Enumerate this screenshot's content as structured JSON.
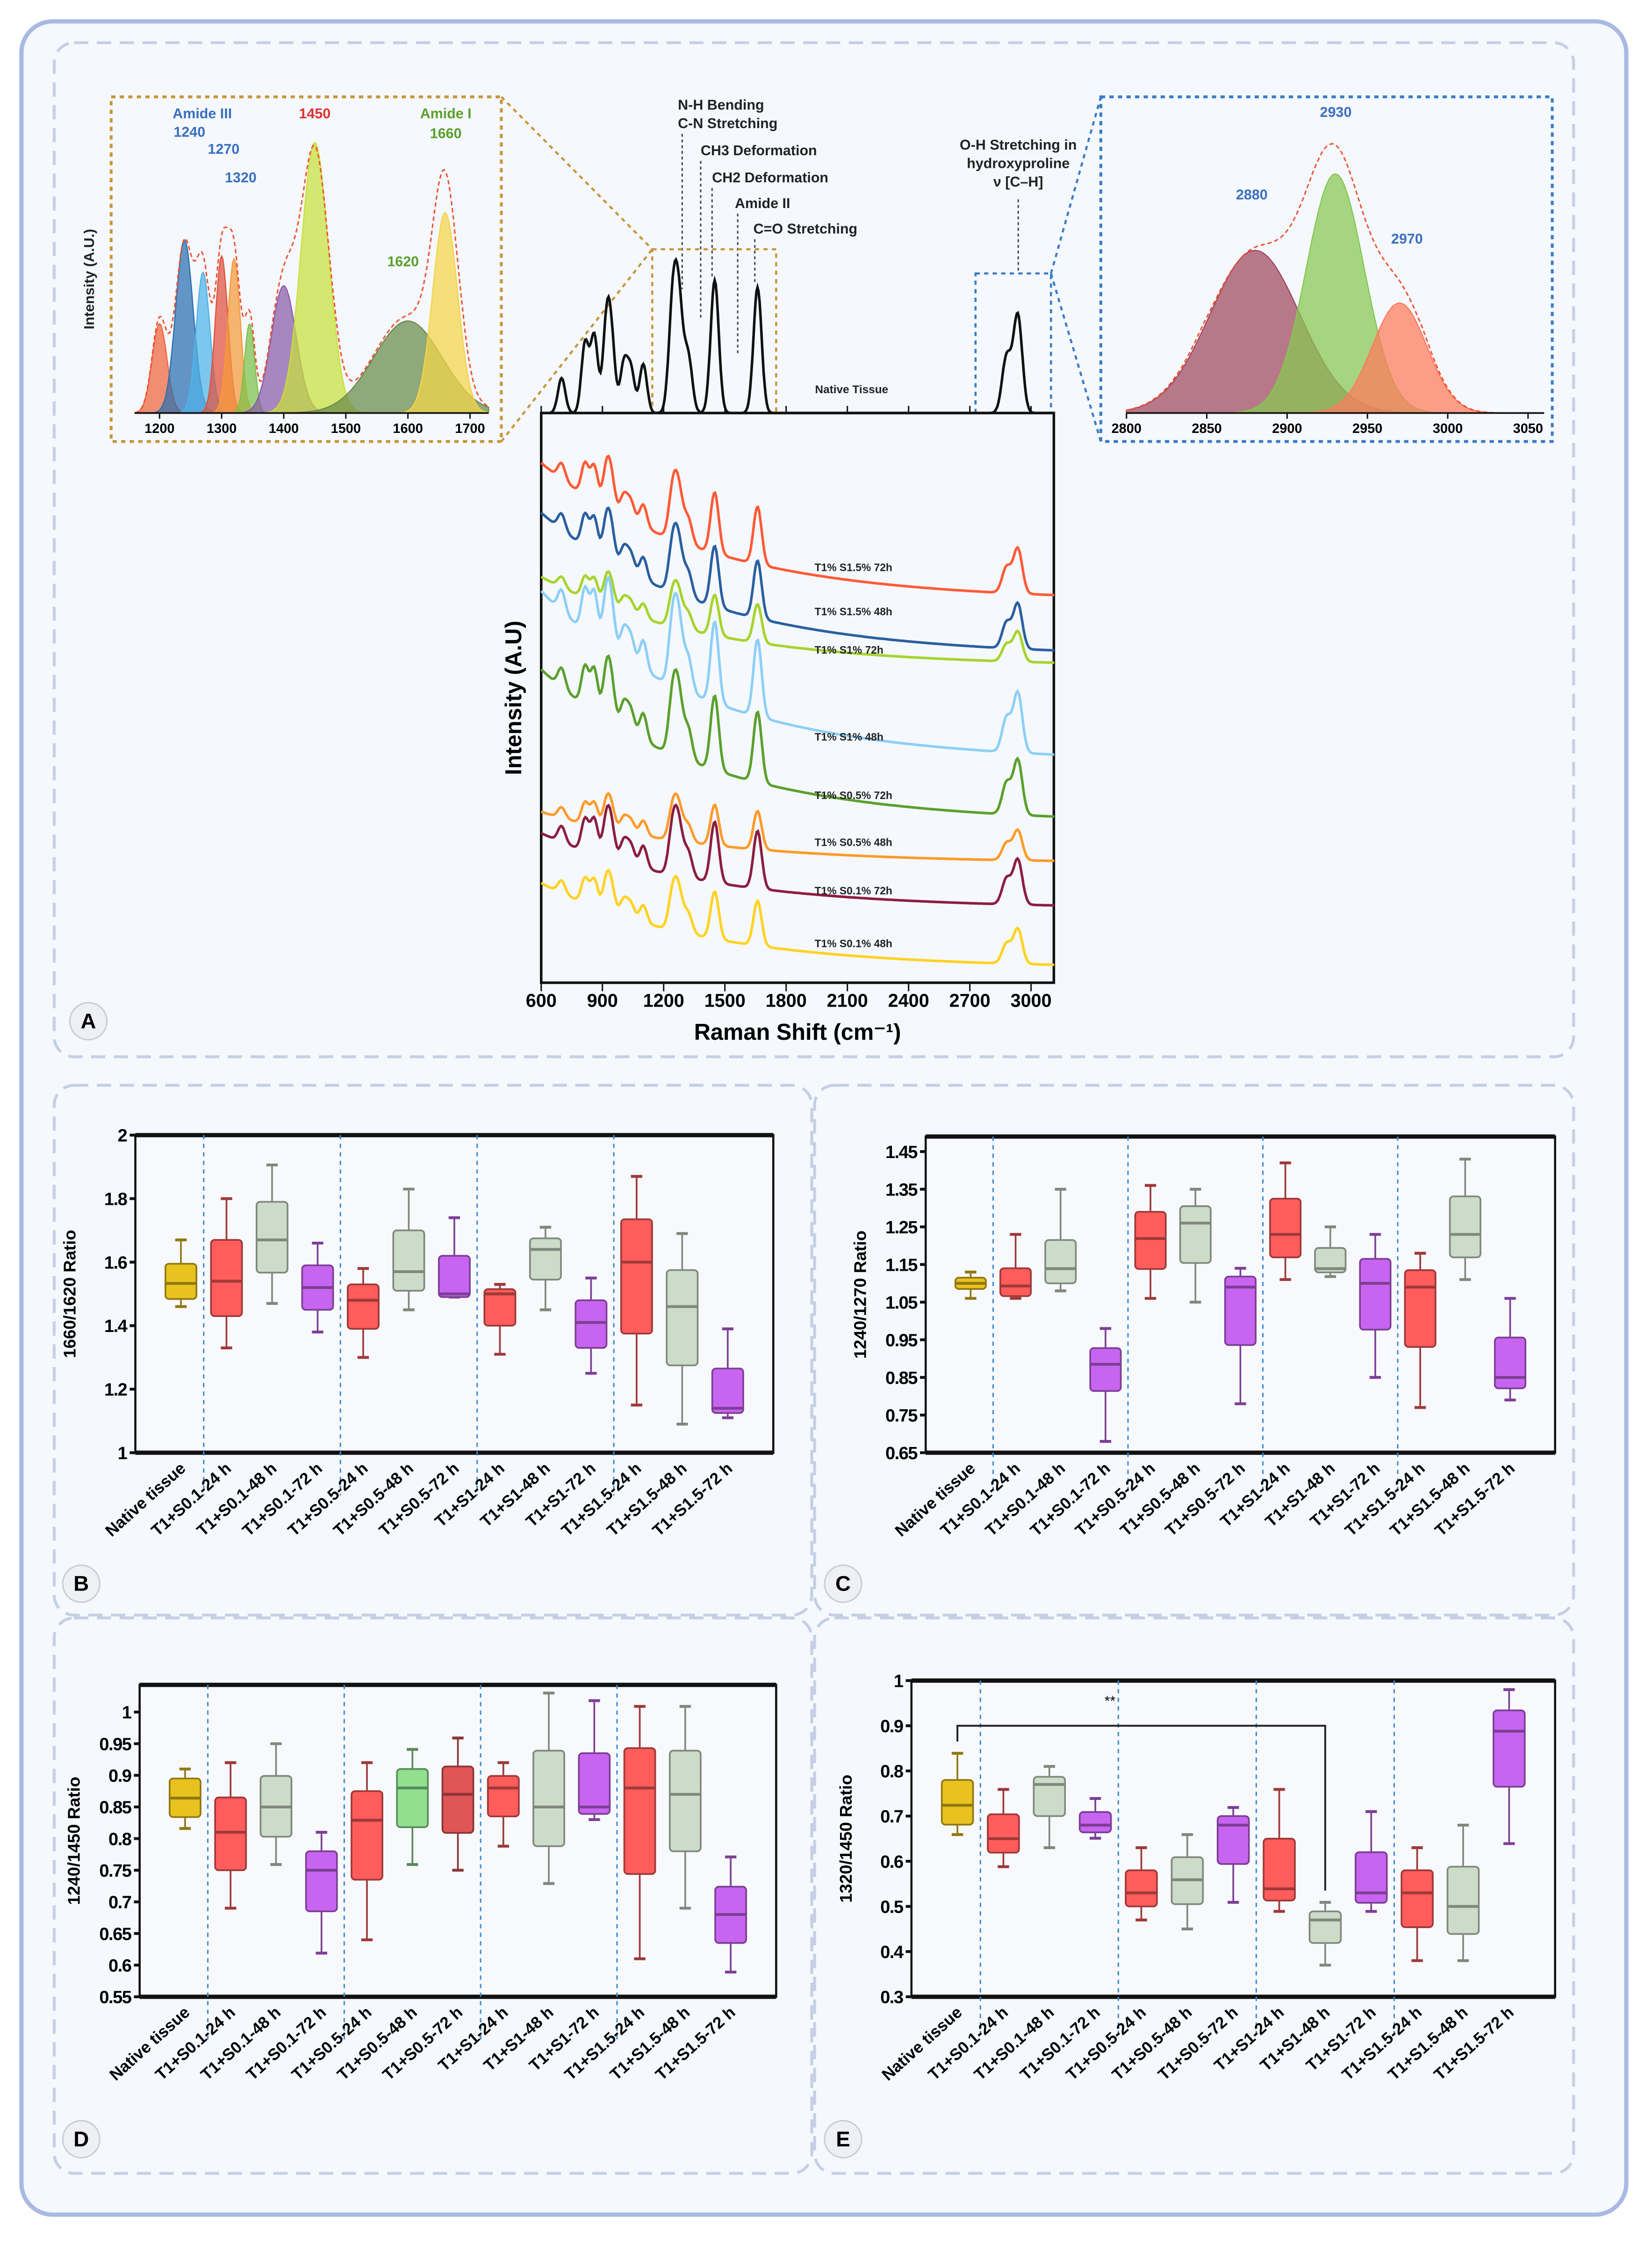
{
  "panels": {
    "A": "A",
    "B": "B",
    "C": "C",
    "D": "D",
    "E": "E"
  },
  "colors": {
    "frame_border": "#a9b9e2",
    "background": "#f5f8fc",
    "inset_left_border": "#c8953a",
    "inset_right_border": "#3a7cc8",
    "envelope": "#f05030"
  },
  "spectra_annotations": {
    "nh": "N-H Bending",
    "cn": "C-N Stretching",
    "ch3": "CH3 Deformation",
    "ch2": "CH2 Deformation",
    "amide2": "Amide II",
    "co": "C=O Stretching",
    "oh1": "O-H Stretching in",
    "oh2": "hydroxyproline",
    "oh3": "ν [C–H]",
    "native": "Native Tissue"
  },
  "chart_data": [
    {
      "type": "line",
      "panel": "A",
      "xlabel": "Raman Shift (cm⁻¹)",
      "ylabel": "Intensity (A.U)",
      "xlim": [
        600,
        3115
      ],
      "xticks": [
        "600",
        "900",
        "1200",
        "1500",
        "1800",
        "2100",
        "2400",
        "2700",
        "3000"
      ],
      "native_peaks_cm": [
        [
          700,
          0.25
        ],
        [
          815,
          0.5
        ],
        [
          860,
          0.55
        ],
        [
          920,
          0.6
        ],
        [
          945,
          0.45
        ],
        [
          1005,
          0.35
        ],
        [
          1040,
          0.3
        ],
        [
          1100,
          0.35
        ],
        [
          1245,
          0.75
        ],
        [
          1275,
          0.7
        ],
        [
          1320,
          0.4
        ],
        [
          1450,
          0.95
        ],
        [
          1660,
          0.9
        ],
        [
          2880,
          0.4
        ],
        [
          2935,
          0.7
        ]
      ],
      "series": [
        {
          "name": "T1% S1.5% 72h",
          "color": "#ff5a36"
        },
        {
          "name": "T1% S1.5% 48h",
          "color": "#2a5fa0"
        },
        {
          "name": "T1% S1% 72h",
          "color": "#a6d32b"
        },
        {
          "name": "T1% S1% 48h",
          "color": "#8ccff7"
        },
        {
          "name": "T1% S0.5% 72h",
          "color": "#5aa02c"
        },
        {
          "name": "T1% S0.5% 48h",
          "color": "#ff9a2a"
        },
        {
          "name": "T1% S0.1% 72h",
          "color": "#8c1d40"
        },
        {
          "name": "T1% S0.1% 48h",
          "color": "#ffd21f"
        }
      ]
    },
    {
      "type": "area",
      "panel": "A-inset-left",
      "ylabel": "Intensity (A.U.)",
      "xlim": [
        1160,
        1730
      ],
      "xticks": [
        "1200",
        "1300",
        "1400",
        "1500",
        "1600",
        "1700"
      ],
      "components": [
        {
          "center": 1200,
          "rel": 0.33,
          "width": 12,
          "color": "#f0643c"
        },
        {
          "center": 1240,
          "rel": 0.64,
          "width": 14,
          "color": "#2a6fb0"
        },
        {
          "center": 1270,
          "rel": 0.52,
          "width": 11,
          "color": "#4fb3e8"
        },
        {
          "center": 1300,
          "rel": 0.58,
          "width": 10,
          "color": "#e0503c"
        },
        {
          "center": 1320,
          "rel": 0.57,
          "width": 10,
          "color": "#f59a3a"
        },
        {
          "center": 1345,
          "rel": 0.33,
          "width": 8,
          "color": "#7cc04a"
        },
        {
          "center": 1400,
          "rel": 0.47,
          "width": 20,
          "color": "#8a5aa8"
        },
        {
          "center": 1450,
          "rel": 1.0,
          "width": 22,
          "color": "#c8e03a"
        },
        {
          "center": 1600,
          "rel": 0.34,
          "width": 55,
          "color": "#6a8a4a"
        },
        {
          "center": 1660,
          "rel": 0.74,
          "width": 20,
          "color": "#f5d54a"
        }
      ],
      "labels": {
        "amide3": "Amide III",
        "p1240": "1240",
        "p1270": "1270",
        "p1320": "1320",
        "p1450": "1450",
        "amide1": "Amide I",
        "p1660": "1660",
        "p1620": "1620"
      }
    },
    {
      "type": "area",
      "panel": "A-inset-right",
      "xlim": [
        2800,
        3060
      ],
      "xticks": [
        "2800",
        "2850",
        "2900",
        "2950",
        "3000",
        "3050"
      ],
      "components": [
        {
          "center": 2880,
          "rel": 0.68,
          "width": 28,
          "color": "#a0485e"
        },
        {
          "center": 2930,
          "rel": 1.0,
          "width": 18,
          "color": "#86c850"
        },
        {
          "center": 2970,
          "rel": 0.46,
          "width": 17,
          "color": "#ff7a5c"
        }
      ],
      "labels": {
        "p2880": "2880",
        "p2930": "2930",
        "p2970": "2970"
      }
    },
    {
      "type": "box",
      "panel": "B",
      "ylabel": "1660/1620 Ratio",
      "ylim": [
        1,
        2
      ],
      "yticks": [
        "1",
        "1.2",
        "1.4",
        "1.6",
        "1.8",
        "2"
      ],
      "categories": [
        "Native tissue",
        "T1+S0.1-24 h",
        "T1+S0.1-48 h",
        "T1+S0.1-72 h",
        "T1+S0.5-24 h",
        "T1+S0.5-48 h",
        "T1+S0.5-72 h",
        "T1+S1-24 h",
        "T1+S1-48 h",
        "T1+S1-72 h",
        "T1+S1.5-24 h",
        "T1+S1.5-48 h",
        "T1+S1.5-72 h"
      ],
      "colors": [
        "#e8c21f",
        "#ff5c5c",
        "#cddcc8",
        "#c865f0",
        "#ff5c5c",
        "#cddcc8",
        "#c865f0",
        "#ff5c5c",
        "#cddcc8",
        "#c865f0",
        "#ff5c5c",
        "#cddcc8",
        "#c865f0"
      ],
      "boxes_min_q1_median_q3_max": [
        [
          1.46,
          1.484,
          1.533,
          1.595,
          1.67
        ],
        [
          1.33,
          1.43,
          1.54,
          1.67,
          1.8
        ],
        [
          1.47,
          1.567,
          1.67,
          1.79,
          1.906
        ],
        [
          1.38,
          1.45,
          1.52,
          1.59,
          1.66
        ],
        [
          1.3,
          1.39,
          1.48,
          1.53,
          1.58
        ],
        [
          1.45,
          1.51,
          1.57,
          1.7,
          1.83
        ],
        [
          1.49,
          1.49,
          1.5,
          1.62,
          1.74
        ],
        [
          1.31,
          1.4,
          1.5,
          1.515,
          1.53
        ],
        [
          1.45,
          1.545,
          1.64,
          1.675,
          1.71
        ],
        [
          1.25,
          1.33,
          1.41,
          1.48,
          1.55
        ],
        [
          1.15,
          1.375,
          1.6,
          1.735,
          1.87
        ],
        [
          1.09,
          1.275,
          1.46,
          1.575,
          1.69
        ],
        [
          1.11,
          1.125,
          1.14,
          1.265,
          1.39
        ]
      ]
    },
    {
      "type": "box",
      "panel": "C",
      "ylabel": "1240/1270 Ratio",
      "ylim": [
        0.65,
        1.49
      ],
      "yticks": [
        "0.65",
        "0.75",
        "0.85",
        "0.95",
        "1.05",
        "1.15",
        "1.25",
        "1.35",
        "1.45"
      ],
      "categories": [
        "Native tissue",
        "T1+S0.1-24 h",
        "T1+S0.1-48 h",
        "T1+S0.1-72 h",
        "T1+S0.5-24 h",
        "T1+S0.5-48 h",
        "T1+S0.5-72 h",
        "T1+S1-24 h",
        "T1+S1-48 h",
        "T1+S1-72 h",
        "T1+S1.5-24 h",
        "T1+S1.5-48 h",
        "T1+S1.5-72 h"
      ],
      "colors": [
        "#e8c21f",
        "#ff5c5c",
        "#cddcc8",
        "#c865f0",
        "#ff5c5c",
        "#cddcc8",
        "#c865f0",
        "#ff5c5c",
        "#cddcc8",
        "#c865f0",
        "#ff5c5c",
        "#cddcc8",
        "#c865f0"
      ],
      "boxes_min_q1_median_q3_max": [
        [
          1.06,
          1.085,
          1.1,
          1.115,
          1.13
        ],
        [
          1.06,
          1.066,
          1.093,
          1.14,
          1.23
        ],
        [
          1.08,
          1.1,
          1.139,
          1.215,
          1.35
        ],
        [
          0.68,
          0.814,
          0.885,
          0.928,
          0.98
        ],
        [
          1.06,
          1.138,
          1.219,
          1.29,
          1.36
        ],
        [
          1.05,
          1.154,
          1.26,
          1.305,
          1.35
        ],
        [
          0.78,
          0.936,
          1.09,
          1.118,
          1.14
        ],
        [
          1.11,
          1.169,
          1.23,
          1.325,
          1.42
        ],
        [
          1.118,
          1.129,
          1.139,
          1.194,
          1.25
        ],
        [
          0.85,
          0.977,
          1.1,
          1.165,
          1.23
        ],
        [
          0.77,
          0.931,
          1.09,
          1.135,
          1.18
        ],
        [
          1.11,
          1.169,
          1.23,
          1.331,
          1.43
        ],
        [
          0.79,
          0.821,
          0.85,
          0.956,
          1.06
        ]
      ]
    },
    {
      "type": "box",
      "panel": "D",
      "ylabel": "1240/1450 Ratio",
      "ylim": [
        0.55,
        1.043
      ],
      "yticks": [
        "0.55",
        "0.6",
        "0.65",
        "0.7",
        "0.75",
        "0.8",
        "0.85",
        "0.9",
        "0.95",
        "1"
      ],
      "categories": [
        "Native tissue",
        "T1+S0.1-24 h",
        "T1+S0.1-48 h",
        "T1+S0.1-72 h",
        "T1+S0.5-24 h",
        "T1+S0.5-48 h",
        "T1+S0.5-72 h",
        "T1+S1-24 h",
        "T1+S1-48 h",
        "T1+S1-72 h",
        "T1+S1.5-24 h",
        "T1+S1.5-48 h",
        "T1+S1.5-72 h"
      ],
      "colors": [
        "#e8c21f",
        "#ff5c5c",
        "#cddcc8",
        "#c865f0",
        "#ff5c5c",
        "#90e090",
        "#e05555",
        "#ff5c5c",
        "#cddcc8",
        "#c865f0",
        "#ff5c5c",
        "#cddcc8",
        "#c865f0"
      ],
      "boxes_min_q1_median_q3_max": [
        [
          0.816,
          0.834,
          0.864,
          0.895,
          0.91
        ],
        [
          0.69,
          0.75,
          0.81,
          0.865,
          0.92
        ],
        [
          0.759,
          0.803,
          0.85,
          0.899,
          0.95
        ],
        [
          0.619,
          0.685,
          0.75,
          0.78,
          0.81
        ],
        [
          0.64,
          0.735,
          0.829,
          0.875,
          0.92
        ],
        [
          0.759,
          0.818,
          0.88,
          0.91,
          0.941
        ],
        [
          0.75,
          0.809,
          0.87,
          0.914,
          0.959
        ],
        [
          0.788,
          0.835,
          0.88,
          0.899,
          0.92
        ],
        [
          0.729,
          0.788,
          0.85,
          0.939,
          1.03
        ],
        [
          0.83,
          0.839,
          0.85,
          0.935,
          1.018
        ],
        [
          0.61,
          0.744,
          0.88,
          0.943,
          1.009
        ],
        [
          0.69,
          0.78,
          0.87,
          0.939,
          1.009
        ],
        [
          0.589,
          0.635,
          0.68,
          0.724,
          0.771
        ]
      ]
    },
    {
      "type": "box",
      "panel": "E",
      "ylabel": "1320/1450 Ratio",
      "ylim": [
        0.3,
        1
      ],
      "yticks": [
        "0.3",
        "0.4",
        "0.5",
        "0.6",
        "0.7",
        "0.8",
        "0.9",
        "1"
      ],
      "categories": [
        "Native tissue",
        "T1+S0.1-24 h",
        "T1+S0.1-48 h",
        "T1+S0.1-72 h",
        "T1+S0.5-24 h",
        "T1+S0.5-48 h",
        "T1+S0.5-72 h",
        "T1+S1-24 h",
        "T1+S1-48 h",
        "T1+S1-72 h",
        "T1+S1.5-24 h",
        "T1+S1.5-48 h",
        "T1+S1.5-72 h"
      ],
      "colors": [
        "#e8c21f",
        "#ff5c5c",
        "#cddcc8",
        "#c865f0",
        "#ff5c5c",
        "#cddcc8",
        "#c865f0",
        "#ff5c5c",
        "#cddcc8",
        "#c865f0",
        "#ff5c5c",
        "#cddcc8",
        "#c865f0"
      ],
      "boxes_min_q1_median_q3_max": [
        [
          0.659,
          0.681,
          0.724,
          0.78,
          0.839
        ],
        [
          0.588,
          0.619,
          0.65,
          0.704,
          0.759
        ],
        [
          0.63,
          0.7,
          0.77,
          0.787,
          0.81
        ],
        [
          0.651,
          0.664,
          0.68,
          0.709,
          0.739
        ],
        [
          0.47,
          0.5,
          0.53,
          0.58,
          0.63
        ],
        [
          0.45,
          0.505,
          0.559,
          0.609,
          0.659
        ],
        [
          0.509,
          0.594,
          0.68,
          0.7,
          0.719
        ],
        [
          0.489,
          0.513,
          0.539,
          0.65,
          0.759
        ],
        [
          0.37,
          0.419,
          0.47,
          0.489,
          0.509
        ],
        [
          0.489,
          0.508,
          0.53,
          0.62,
          0.71
        ],
        [
          0.38,
          0.454,
          0.53,
          0.58,
          0.63
        ],
        [
          0.38,
          0.439,
          0.5,
          0.588,
          0.68
        ],
        [
          0.639,
          0.765,
          0.888,
          0.934,
          0.98
        ]
      ],
      "significance": {
        "from": "Native tissue",
        "to": "T1+S1-48 h",
        "level": 0.9,
        "label": "**"
      }
    }
  ]
}
